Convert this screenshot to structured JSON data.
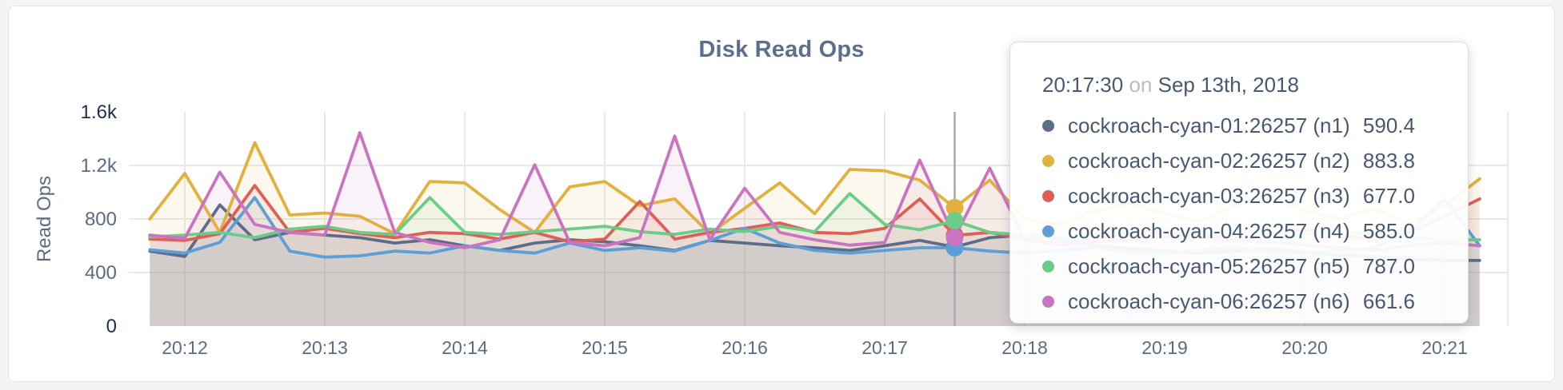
{
  "header": {
    "title": "Disk Read Ops"
  },
  "colors": {
    "title_text": "#5c6e8e",
    "axis_text": "#5b6b86",
    "axis_text_emphasis": "#1e2d52",
    "tooltip_text": "#475872",
    "tooltip_muted_text": "#b9bec8",
    "grid_line": "#e9e9ea",
    "hover_line": "#a9a9a9",
    "card_background": "#ffffff",
    "page_background": "#f4f4f5"
  },
  "tooltip": {
    "time": "20:17:30",
    "connector": "on",
    "date": "Sep 13th, 2018",
    "rows": [
      {
        "label": "cockroach-cyan-01:26257 (n1)",
        "value": "590.4",
        "color": "#5f6c87"
      },
      {
        "label": "cockroach-cyan-02:26257 (n2)",
        "value": "883.8",
        "color": "#e2b03c"
      },
      {
        "label": "cockroach-cyan-03:26257 (n3)",
        "value": "677.0",
        "color": "#dd5f57"
      },
      {
        "label": "cockroach-cyan-04:26257 (n4)",
        "value": "585.0",
        "color": "#5c9fd6"
      },
      {
        "label": "cockroach-cyan-05:26257 (n5)",
        "value": "787.0",
        "color": "#6bcc87"
      },
      {
        "label": "cockroach-cyan-06:26257 (n6)",
        "value": "661.6",
        "color": "#c973c1"
      }
    ]
  },
  "chart_data": {
    "type": "area",
    "title": "Disk Read Ops",
    "xlabel": "",
    "ylabel": "Read Ops",
    "ylim": [
      0,
      1600
    ],
    "grid": true,
    "legend_position": "tooltip",
    "x_ticks": [
      "20:12",
      "20:13",
      "20:14",
      "20:15",
      "20:16",
      "20:17",
      "20:18",
      "20:19",
      "20:20",
      "20:21"
    ],
    "y_ticks": [
      {
        "label": "0",
        "value": 0,
        "emphasis": true,
        "gridline": false
      },
      {
        "label": "400",
        "value": 400,
        "emphasis": false,
        "gridline": true
      },
      {
        "label": "800",
        "value": 800,
        "emphasis": false,
        "gridline": true
      },
      {
        "label": "1.2k",
        "value": 1200,
        "emphasis": false,
        "gridline": true
      },
      {
        "label": "1.6k",
        "value": 1600,
        "emphasis": true,
        "gridline": false
      }
    ],
    "x_start_time": "20:11:45",
    "x_interval_seconds": 15,
    "hover_time": "20:17:30",
    "hover_date": "Sep 13th, 2018",
    "series": [
      {
        "name": "cockroach-cyan-01:26257 (n1)",
        "color": "#5f6c87",
        "hover_value": 590.4,
        "values": [
          560,
          520,
          905,
          645,
          700,
          680,
          660,
          620,
          645,
          600,
          565,
          620,
          645,
          630,
          600,
          565,
          640,
          620,
          600,
          585,
          565,
          600,
          640,
          590.4,
          660,
          680,
          650,
          600,
          580,
          560,
          545,
          560,
          580,
          550,
          530,
          520,
          500,
          490,
          490
        ]
      },
      {
        "name": "cockroach-cyan-02:26257 (n2)",
        "color": "#e2b03c",
        "hover_value": 883.8,
        "values": [
          800,
          1140,
          700,
          1370,
          830,
          845,
          820,
          690,
          1080,
          1070,
          870,
          700,
          1040,
          1080,
          900,
          950,
          690,
          880,
          1070,
          840,
          1170,
          1160,
          1090,
          883.8,
          1090,
          800,
          760,
          860,
          920,
          840,
          780,
          900,
          980,
          860,
          800,
          880,
          760,
          900,
          1100
        ]
      },
      {
        "name": "cockroach-cyan-03:26257 (n3)",
        "color": "#dd5f57",
        "hover_value": 677.0,
        "values": [
          650,
          640,
          690,
          1050,
          700,
          730,
          690,
          660,
          700,
          690,
          650,
          700,
          630,
          650,
          930,
          650,
          700,
          730,
          770,
          700,
          690,
          730,
          950,
          677,
          700,
          650,
          620,
          650,
          680,
          700,
          670,
          640,
          690,
          720,
          680,
          650,
          700,
          820,
          950
        ]
      },
      {
        "name": "cockroach-cyan-04:26257 (n4)",
        "color": "#5c9fd6",
        "hover_value": 585.0,
        "values": [
          570,
          545,
          625,
          960,
          560,
          515,
          525,
          560,
          545,
          600,
          565,
          545,
          620,
          565,
          585,
          560,
          640,
          730,
          620,
          565,
          545,
          565,
          585,
          585,
          560,
          545,
          565,
          585,
          560,
          545,
          565,
          585,
          560,
          545,
          565,
          585,
          700,
          950,
          600
        ]
      },
      {
        "name": "cockroach-cyan-05:26257 (n5)",
        "color": "#6bcc87",
        "hover_value": 787.0,
        "values": [
          665,
          680,
          700,
          660,
          725,
          745,
          700,
          685,
          960,
          700,
          685,
          705,
          725,
          745,
          705,
          685,
          725,
          705,
          745,
          705,
          990,
          760,
          720,
          787,
          700,
          680,
          660,
          685,
          705,
          725,
          700,
          680,
          665,
          685,
          705,
          685,
          665,
          645,
          645
        ]
      },
      {
        "name": "cockroach-cyan-06:26257 (n6)",
        "color": "#c973c1",
        "hover_value": 661.6,
        "values": [
          680,
          655,
          1150,
          760,
          700,
          680,
          1445,
          700,
          625,
          585,
          645,
          1205,
          625,
          600,
          660,
          1420,
          645,
          1030,
          700,
          645,
          605,
          625,
          1240,
          661.6,
          1180,
          645,
          605,
          625,
          645,
          665,
          685,
          645,
          625,
          605,
          585,
          565,
          605,
          625,
          600
        ]
      }
    ]
  }
}
